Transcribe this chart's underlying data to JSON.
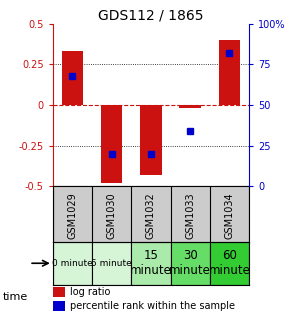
{
  "title": "GDS112 / 1865",
  "samples": [
    "GSM1029",
    "GSM1030",
    "GSM1032",
    "GSM1033",
    "GSM1034"
  ],
  "log_ratios": [
    0.33,
    -0.48,
    -0.43,
    -0.02,
    0.4
  ],
  "percentile_ranks": [
    68,
    20,
    20,
    34,
    82
  ],
  "time_labels": [
    "0 minute",
    "5 minute",
    "15\nminute",
    "30\nminute",
    "60\nminute"
  ],
  "time_colors": [
    "#d6f5d6",
    "#d6f5d6",
    "#aaeaaa",
    "#66dd66",
    "#33cc33"
  ],
  "ylim": [
    -0.5,
    0.5
  ],
  "yticks": [
    -0.5,
    -0.25,
    0,
    0.25,
    0.5
  ],
  "right_yticks": [
    0,
    25,
    50,
    75,
    100
  ],
  "bar_color": "#cc1111",
  "dot_color": "#0000cc",
  "zero_line_color": "#cc1111",
  "grid_color": "black",
  "title_color": "black",
  "left_tick_color": "#cc1111",
  "right_tick_color": "#0000cc",
  "bar_width": 0.55,
  "label_bg": "#cccccc",
  "time_font_small": 6.5,
  "time_font_large": 8.5
}
